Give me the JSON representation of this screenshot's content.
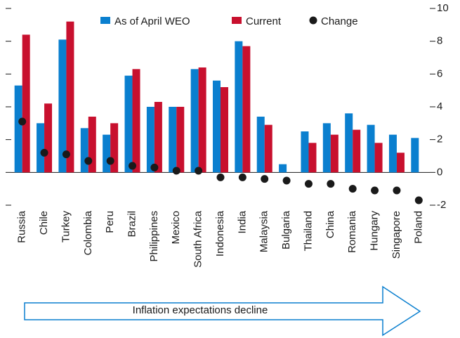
{
  "chart_data": {
    "type": "bar",
    "categories": [
      "Russia",
      "Chile",
      "Turkey",
      "Colombia",
      "Peru",
      "Brazil",
      "Philippines",
      "Mexico",
      "South Africa",
      "Indonesia",
      "India",
      "Malaysia",
      "Bulgaria",
      "Thailand",
      "China",
      "Romania",
      "Hungary",
      "Singapore",
      "Poland"
    ],
    "series": [
      {
        "name": "As of April WEO",
        "type": "bar",
        "color": "#0a7fcf",
        "values": [
          5.3,
          3.0,
          8.1,
          2.7,
          2.3,
          5.9,
          4.0,
          4.0,
          6.3,
          5.6,
          8.0,
          3.4,
          0.5,
          2.5,
          3.0,
          3.6,
          2.9,
          2.3,
          2.1
        ]
      },
      {
        "name": "Current",
        "type": "bar",
        "color": "#c8102e",
        "values": [
          8.4,
          4.2,
          9.2,
          3.4,
          3.0,
          6.3,
          4.3,
          4.0,
          6.4,
          5.2,
          7.7,
          2.9,
          null,
          1.8,
          2.3,
          2.6,
          1.8,
          1.2,
          null
        ]
      },
      {
        "name": "Change",
        "type": "scatter",
        "color": "#1a1a1a",
        "values": [
          3.1,
          1.2,
          1.1,
          0.7,
          0.7,
          0.4,
          0.3,
          0.1,
          0.1,
          -0.3,
          -0.3,
          -0.4,
          -0.5,
          -0.7,
          -0.7,
          -1.0,
          -1.1,
          -1.1,
          -1.7
        ]
      }
    ],
    "ylim": [
      -2,
      10
    ],
    "yticks": [
      -2,
      0,
      2,
      4,
      6,
      8,
      10
    ],
    "annotation": "Inflation expectations decline"
  }
}
